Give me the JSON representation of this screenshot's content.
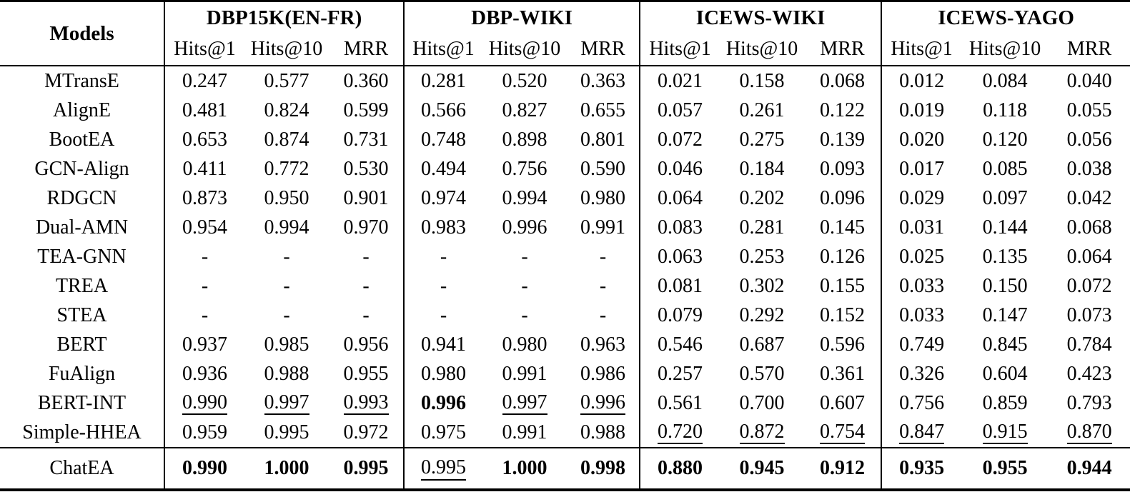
{
  "table": {
    "models_header": "Models",
    "groups": [
      {
        "label": "DBP15K(EN-FR)",
        "metrics": [
          "Hits@1",
          "Hits@10",
          "MRR"
        ]
      },
      {
        "label": "DBP-WIKI",
        "metrics": [
          "Hits@1",
          "Hits@10",
          "MRR"
        ]
      },
      {
        "label": "ICEWS-WIKI",
        "metrics": [
          "Hits@1",
          "Hits@10",
          "MRR"
        ]
      },
      {
        "label": "ICEWS-YAGO",
        "metrics": [
          "Hits@1",
          "Hits@10",
          "MRR"
        ]
      }
    ],
    "rows": [
      {
        "model": "MTransE",
        "values": [
          "0.247",
          "0.577",
          "0.360",
          "0.281",
          "0.520",
          "0.363",
          "0.021",
          "0.158",
          "0.068",
          "0.012",
          "0.084",
          "0.040"
        ]
      },
      {
        "model": "AlignE",
        "values": [
          "0.481",
          "0.824",
          "0.599",
          "0.566",
          "0.827",
          "0.655",
          "0.057",
          "0.261",
          "0.122",
          "0.019",
          "0.118",
          "0.055"
        ]
      },
      {
        "model": "BootEA",
        "values": [
          "0.653",
          "0.874",
          "0.731",
          "0.748",
          "0.898",
          "0.801",
          "0.072",
          "0.275",
          "0.139",
          "0.020",
          "0.120",
          "0.056"
        ]
      },
      {
        "model": "GCN-Align",
        "values": [
          "0.411",
          "0.772",
          "0.530",
          "0.494",
          "0.756",
          "0.590",
          "0.046",
          "0.184",
          "0.093",
          "0.017",
          "0.085",
          "0.038"
        ]
      },
      {
        "model": "RDGCN",
        "values": [
          "0.873",
          "0.950",
          "0.901",
          "0.974",
          "0.994",
          "0.980",
          "0.064",
          "0.202",
          "0.096",
          "0.029",
          "0.097",
          "0.042"
        ]
      },
      {
        "model": "Dual-AMN",
        "values": [
          "0.954",
          "0.994",
          "0.970",
          "0.983",
          "0.996",
          "0.991",
          "0.083",
          "0.281",
          "0.145",
          "0.031",
          "0.144",
          "0.068"
        ]
      },
      {
        "model": "TEA-GNN",
        "values": [
          "-",
          "-",
          "-",
          "-",
          "-",
          "-",
          "0.063",
          "0.253",
          "0.126",
          "0.025",
          "0.135",
          "0.064"
        ]
      },
      {
        "model": "TREA",
        "values": [
          "-",
          "-",
          "-",
          "-",
          "-",
          "-",
          "0.081",
          "0.302",
          "0.155",
          "0.033",
          "0.150",
          "0.072"
        ]
      },
      {
        "model": "STEA",
        "values": [
          "-",
          "-",
          "-",
          "-",
          "-",
          "-",
          "0.079",
          "0.292",
          "0.152",
          "0.033",
          "0.147",
          "0.073"
        ]
      },
      {
        "model": "BERT",
        "values": [
          "0.937",
          "0.985",
          "0.956",
          "0.941",
          "0.980",
          "0.963",
          "0.546",
          "0.687",
          "0.596",
          "0.749",
          "0.845",
          "0.784"
        ]
      },
      {
        "model": "FuAlign",
        "values": [
          "0.936",
          "0.988",
          "0.955",
          "0.980",
          "0.991",
          "0.986",
          "0.257",
          "0.570",
          "0.361",
          "0.326",
          "0.604",
          "0.423"
        ]
      },
      {
        "model": "BERT-INT",
        "values": [
          "0.990",
          "0.997",
          "0.993",
          "0.996",
          "0.997",
          "0.996",
          "0.561",
          "0.700",
          "0.607",
          "0.756",
          "0.859",
          "0.793"
        ],
        "styles": [
          "u",
          "u",
          "u",
          "b",
          "u",
          "u",
          "n",
          "n",
          "n",
          "n",
          "n",
          "n"
        ]
      },
      {
        "model": "Simple-HHEA",
        "values": [
          "0.959",
          "0.995",
          "0.972",
          "0.975",
          "0.991",
          "0.988",
          "0.720",
          "0.872",
          "0.754",
          "0.847",
          "0.915",
          "0.870"
        ],
        "styles": [
          "n",
          "n",
          "n",
          "n",
          "n",
          "n",
          "u",
          "u",
          "u",
          "u",
          "u",
          "u"
        ]
      }
    ],
    "footer": {
      "model": "ChatEA",
      "values": [
        "0.990",
        "1.000",
        "0.995",
        "0.995",
        "1.000",
        "0.998",
        "0.880",
        "0.945",
        "0.912",
        "0.935",
        "0.955",
        "0.944"
      ],
      "styles": [
        "b",
        "b",
        "b",
        "u",
        "b",
        "b",
        "b",
        "b",
        "b",
        "b",
        "b",
        "b"
      ]
    }
  }
}
